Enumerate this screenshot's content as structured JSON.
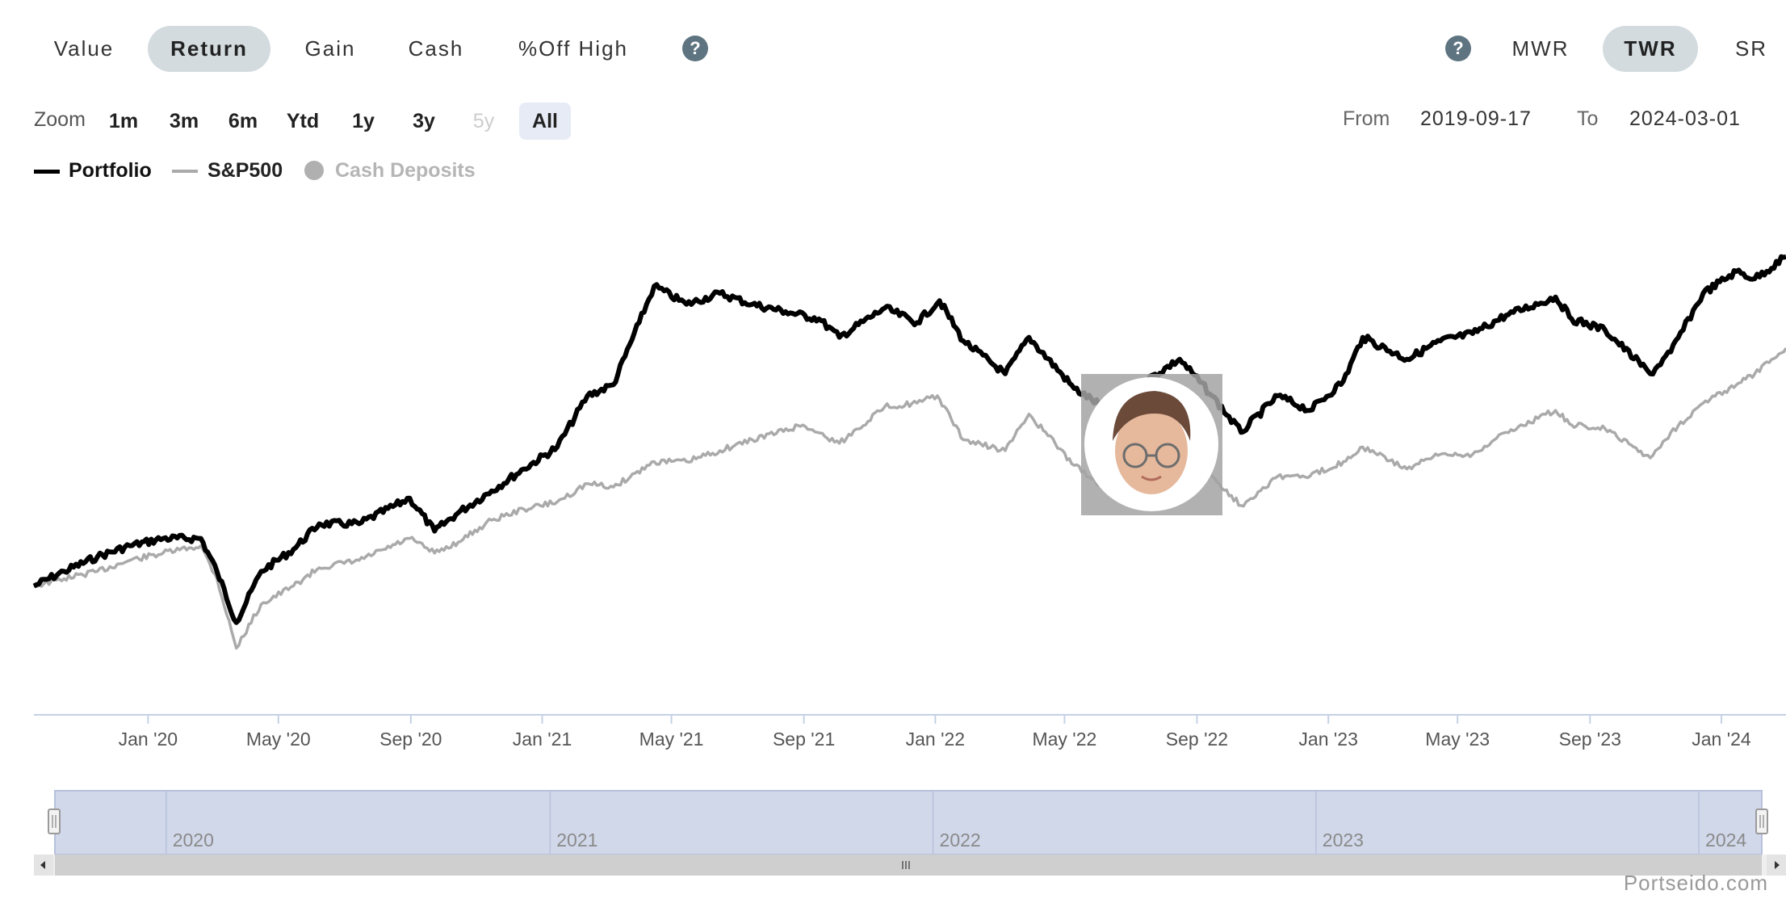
{
  "tabs": {
    "left": [
      "Value",
      "Return",
      "Gain",
      "Cash",
      "%Off High"
    ],
    "left_active": "Return",
    "help": "?",
    "right": [
      "MWR",
      "TWR",
      "SR"
    ],
    "right_active": "TWR"
  },
  "zoom": {
    "label": "Zoom",
    "options": [
      "1m",
      "3m",
      "6m",
      "Ytd",
      "1y",
      "3y",
      "5y",
      "All"
    ],
    "disabled": [
      "5y"
    ],
    "active": "All"
  },
  "range": {
    "from_label": "From",
    "from": "2019-09-17",
    "to_label": "To",
    "to": "2024-03-01"
  },
  "legend": [
    {
      "label": "Portfolio",
      "color": "#000000"
    },
    {
      "label": "S&P500",
      "color": "#aaaaaa"
    },
    {
      "label": "Cash Deposits",
      "color": "#b0b0b0"
    }
  ],
  "credit": "Portseido.com",
  "chart_data": {
    "type": "line",
    "x_range": [
      "2019-09-17",
      "2024-03-01"
    ],
    "x_tick_labels": [
      "Jan '20",
      "May '20",
      "Sep '20",
      "Jan '21",
      "May '21",
      "Sep '21",
      "Jan '22",
      "May '22",
      "Sep '22",
      "Jan '23",
      "May '23",
      "Sep '23",
      "Jan '24"
    ],
    "navigator_labels": [
      "2020",
      "2021",
      "2022",
      "2023",
      "2024"
    ],
    "y_axis_labels_shown": false,
    "y_unit": "relative chart level (unlabeled)",
    "ylim": [
      -0.35,
      1.05
    ],
    "grid": false,
    "series": [
      {
        "name": "Portfolio",
        "color": "#000000",
        "points": [
          [
            "2019-09-17",
            0.0
          ],
          [
            "2019-10-15",
            0.04
          ],
          [
            "2019-11-15",
            0.08
          ],
          [
            "2019-12-15",
            0.11
          ],
          [
            "2020-01-15",
            0.13
          ],
          [
            "2020-02-19",
            0.13
          ],
          [
            "2020-03-05",
            0.04
          ],
          [
            "2020-03-23",
            -0.1
          ],
          [
            "2020-04-15",
            0.04
          ],
          [
            "2020-05-15",
            0.1
          ],
          [
            "2020-06-08",
            0.17
          ],
          [
            "2020-07-15",
            0.17
          ],
          [
            "2020-08-31",
            0.24
          ],
          [
            "2020-09-23",
            0.15
          ],
          [
            "2020-10-15",
            0.2
          ],
          [
            "2020-11-15",
            0.26
          ],
          [
            "2020-12-15",
            0.32
          ],
          [
            "2021-01-15",
            0.38
          ],
          [
            "2021-02-12",
            0.52
          ],
          [
            "2021-03-08",
            0.55
          ],
          [
            "2021-04-01",
            0.72
          ],
          [
            "2021-04-15",
            0.82
          ],
          [
            "2021-05-15",
            0.77
          ],
          [
            "2021-06-15",
            0.8
          ],
          [
            "2021-07-15",
            0.77
          ],
          [
            "2021-08-15",
            0.75
          ],
          [
            "2021-09-15",
            0.73
          ],
          [
            "2021-10-04",
            0.68
          ],
          [
            "2021-11-15",
            0.76
          ],
          [
            "2021-12-15",
            0.72
          ],
          [
            "2022-01-05",
            0.78
          ],
          [
            "2022-01-27",
            0.67
          ],
          [
            "2022-03-07",
            0.58
          ],
          [
            "2022-03-29",
            0.68
          ],
          [
            "2022-05-10",
            0.54
          ],
          [
            "2022-06-16",
            0.47
          ],
          [
            "2022-07-15",
            0.56
          ],
          [
            "2022-08-16",
            0.62
          ],
          [
            "2022-09-15",
            0.52
          ],
          [
            "2022-10-12",
            0.42
          ],
          [
            "2022-11-15",
            0.52
          ],
          [
            "2022-12-15",
            0.48
          ],
          [
            "2023-01-15",
            0.56
          ],
          [
            "2023-02-02",
            0.68
          ],
          [
            "2023-03-15",
            0.62
          ],
          [
            "2023-04-15",
            0.67
          ],
          [
            "2023-05-15",
            0.69
          ],
          [
            "2023-06-15",
            0.74
          ],
          [
            "2023-07-31",
            0.79
          ],
          [
            "2023-08-15",
            0.73
          ],
          [
            "2023-09-15",
            0.7
          ],
          [
            "2023-10-27",
            0.58
          ],
          [
            "2023-11-15",
            0.64
          ],
          [
            "2023-12-15",
            0.8
          ],
          [
            "2024-01-15",
            0.86
          ],
          [
            "2024-02-01",
            0.84
          ],
          [
            "2024-03-01",
            0.9
          ]
        ]
      },
      {
        "name": "S&P500",
        "color": "#aaaaaa",
        "points": [
          [
            "2019-09-17",
            0.0
          ],
          [
            "2019-10-15",
            0.02
          ],
          [
            "2019-11-15",
            0.04
          ],
          [
            "2019-12-15",
            0.07
          ],
          [
            "2020-01-15",
            0.09
          ],
          [
            "2020-02-19",
            0.11
          ],
          [
            "2020-03-05",
            0.02
          ],
          [
            "2020-03-23",
            -0.17
          ],
          [
            "2020-04-15",
            -0.05
          ],
          [
            "2020-05-15",
            0.0
          ],
          [
            "2020-06-08",
            0.05
          ],
          [
            "2020-07-15",
            0.07
          ],
          [
            "2020-08-31",
            0.13
          ],
          [
            "2020-09-23",
            0.09
          ],
          [
            "2020-10-15",
            0.12
          ],
          [
            "2020-11-15",
            0.18
          ],
          [
            "2020-12-15",
            0.21
          ],
          [
            "2021-01-15",
            0.23
          ],
          [
            "2021-02-12",
            0.28
          ],
          [
            "2021-03-08",
            0.27
          ],
          [
            "2021-04-15",
            0.34
          ],
          [
            "2021-05-15",
            0.34
          ],
          [
            "2021-06-15",
            0.37
          ],
          [
            "2021-07-15",
            0.4
          ],
          [
            "2021-08-31",
            0.44
          ],
          [
            "2021-10-04",
            0.39
          ],
          [
            "2021-11-15",
            0.49
          ],
          [
            "2021-12-15",
            0.5
          ],
          [
            "2022-01-03",
            0.52
          ],
          [
            "2022-01-27",
            0.4
          ],
          [
            "2022-03-07",
            0.37
          ],
          [
            "2022-03-29",
            0.47
          ],
          [
            "2022-05-10",
            0.33
          ],
          [
            "2022-06-16",
            0.25
          ],
          [
            "2022-07-15",
            0.3
          ],
          [
            "2022-08-16",
            0.4
          ],
          [
            "2022-09-15",
            0.3
          ],
          [
            "2022-10-12",
            0.22
          ],
          [
            "2022-11-15",
            0.3
          ],
          [
            "2022-12-15",
            0.3
          ],
          [
            "2023-01-15",
            0.34
          ],
          [
            "2023-02-02",
            0.38
          ],
          [
            "2023-03-15",
            0.32
          ],
          [
            "2023-04-15",
            0.36
          ],
          [
            "2023-05-15",
            0.36
          ],
          [
            "2023-06-15",
            0.42
          ],
          [
            "2023-07-31",
            0.48
          ],
          [
            "2023-08-15",
            0.44
          ],
          [
            "2023-09-15",
            0.43
          ],
          [
            "2023-10-27",
            0.35
          ],
          [
            "2023-11-15",
            0.42
          ],
          [
            "2023-12-15",
            0.5
          ],
          [
            "2024-01-15",
            0.55
          ],
          [
            "2024-02-01",
            0.58
          ],
          [
            "2024-03-01",
            0.65
          ]
        ]
      }
    ]
  }
}
